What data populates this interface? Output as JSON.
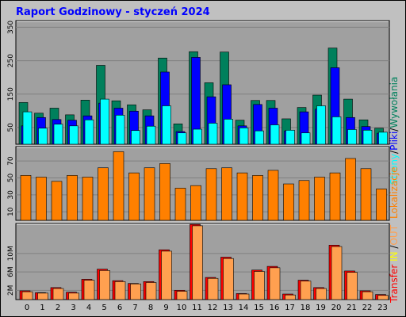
{
  "title": "Raport Godzinowy -   styczeń 2024",
  "legend_top": [
    "Strony",
    "/",
    "Pliki",
    "/",
    "Wywołania"
  ],
  "legend_mid": "Lokalizacje",
  "legend_bot": [
    "Transfer",
    " ",
    "IN",
    " ",
    "/",
    "OUT"
  ],
  "colors": {
    "background": "#c0c0c0",
    "panel": "#a0a0a0",
    "title": "#0000ff",
    "hits": "#00805c",
    "files": "#0000ff",
    "pages": "#00ffff",
    "sites": "#ff8000",
    "kbytes_in": "#ff0000",
    "kbytes_out": "#ffa050"
  },
  "chart_data": [
    {
      "type": "bar",
      "name": "Strony/Pliki/Wywołania",
      "categories": [
        "0",
        "1",
        "2",
        "3",
        "4",
        "5",
        "6",
        "7",
        "8",
        "9",
        "10",
        "11",
        "12",
        "13",
        "14",
        "15",
        "16",
        "17",
        "18",
        "19",
        "20",
        "21",
        "22",
        "23"
      ],
      "series": [
        {
          "name": "Wywołania",
          "values": [
            125,
            93,
            108,
            88,
            132,
            236,
            130,
            118,
            103,
            258,
            61,
            277,
            184,
            276,
            72,
            131,
            131,
            76,
            110,
            147,
            288,
            135,
            73,
            48
          ]
        },
        {
          "name": "Pliki",
          "values": [
            55,
            80,
            74,
            72,
            85,
            123,
            108,
            99,
            85,
            216,
            38,
            260,
            142,
            178,
            55,
            119,
            108,
            40,
            97,
            105,
            229,
            80,
            53,
            33
          ]
        },
        {
          "name": "Strony",
          "values": [
            97,
            48,
            60,
            55,
            73,
            135,
            87,
            41,
            54,
            115,
            34,
            45,
            63,
            75,
            49,
            40,
            58,
            42,
            34,
            115,
            82,
            44,
            42,
            36
          ]
        }
      ],
      "ylim": [
        0,
        370
      ],
      "yticks": [
        "50",
        "150",
        "250",
        "350"
      ]
    },
    {
      "type": "bar",
      "name": "Lokalizacje",
      "categories": [
        "0",
        "1",
        "2",
        "3",
        "4",
        "5",
        "6",
        "7",
        "8",
        "9",
        "10",
        "11",
        "12",
        "13",
        "14",
        "15",
        "16",
        "17",
        "18",
        "19",
        "20",
        "21",
        "22",
        "23"
      ],
      "series": [
        {
          "name": "Lokalizacje",
          "values": [
            53,
            51,
            46,
            53,
            51,
            62,
            81,
            56,
            62,
            67,
            38,
            41,
            61,
            62,
            56,
            53,
            59,
            43,
            47,
            51,
            56,
            73,
            61,
            37
          ]
        }
      ],
      "ylim": [
        0,
        87
      ],
      "yticks": [
        "10",
        "30",
        "50",
        "70"
      ]
    },
    {
      "type": "bar",
      "name": "Transfer IN/OUT",
      "categories": [
        "0",
        "1",
        "2",
        "3",
        "4",
        "5",
        "6",
        "7",
        "8",
        "9",
        "10",
        "11",
        "12",
        "13",
        "14",
        "15",
        "16",
        "17",
        "18",
        "19",
        "20",
        "21",
        "22",
        "23"
      ],
      "series": [
        {
          "name": "IN",
          "values": [
            1.9,
            1.5,
            2.6,
            1.6,
            4.4,
            6.6,
            4.1,
            3.5,
            3.9,
            10.8,
            2.0,
            16.3,
            4.8,
            9.2,
            1.3,
            6.4,
            7.2,
            1.2,
            4.2,
            2.6,
            11.8,
            6.2,
            1.9,
            1.1
          ]
        },
        {
          "name": "OUT",
          "values": [
            1.7,
            1.4,
            2.4,
            1.4,
            4.2,
            6.3,
            3.9,
            3.4,
            3.7,
            10.5,
            1.8,
            16.0,
            4.6,
            8.9,
            1.2,
            6.1,
            6.9,
            1.0,
            4.0,
            2.4,
            11.5,
            5.9,
            1.7,
            0.9
          ]
        }
      ],
      "ylim": [
        0,
        16.5
      ],
      "yticks": [
        "2M",
        "6M",
        "10M"
      ],
      "ytick_values": [
        2,
        6,
        10
      ]
    }
  ]
}
